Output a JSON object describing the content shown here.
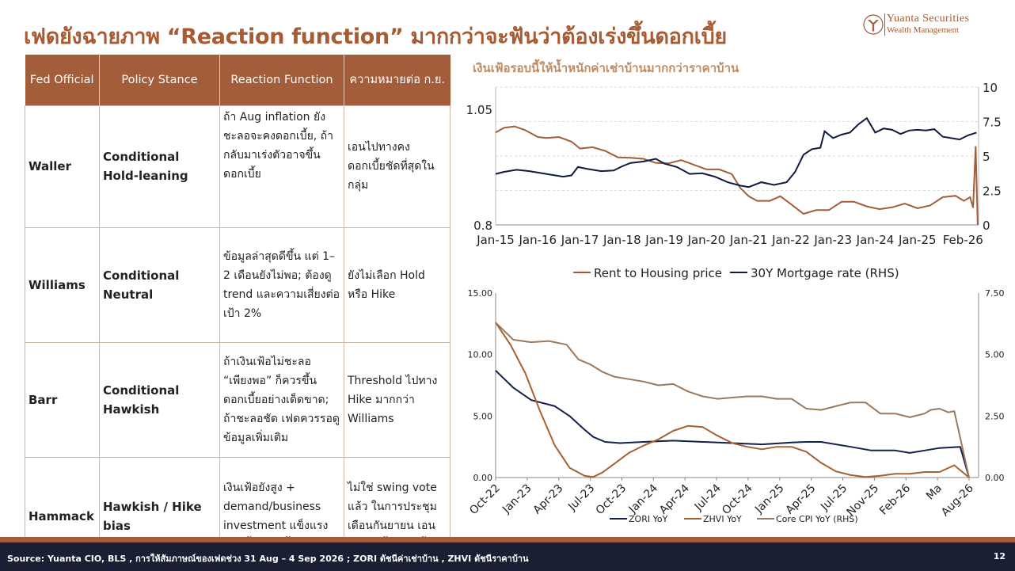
{
  "title": "เฟดยังฉายภาพ “Reaction function” มากกว่าจะฟันว่าต้องเร่งขึ้นดอกเบี้ย",
  "logo": {
    "brand": "Yuanta Securities",
    "sub": "Wealth Management"
  },
  "colors": {
    "accent": "#a35d3a",
    "navy": "#0f1b3d",
    "rent": "#a35d3a",
    "zori": "#13204a",
    "zhvi": "#a8602f",
    "core": "#9a7a5e",
    "footer": "#1b1f34"
  },
  "table": {
    "headers": [
      "Fed Official",
      "Policy Stance",
      "Reaction Function",
      "ความหมายต่อ ก.ย."
    ],
    "rows": [
      {
        "official": "Waller",
        "stance": "Conditional Hold-leaning",
        "reaction": "ถ้า Aug inflation ยังชะลอจะคงดอกเบี้ย, ถ้ากลับมาเร่งตัวอาจขึ้นดอกเบี้ย",
        "meaning": "เอนไปทางคงดอกเบี้ยชัดที่สุดในกลุ่ม"
      },
      {
        "official": "Williams",
        "stance": "Conditional Neutral",
        "reaction": "ข้อมูลล่าสุดดีขึ้น แต่ 1–2 เดือนยังไม่พอ; ต้องดู trend และความเสี่ยงต่อเป้า 2%",
        "meaning": "ยังไม่เลือก Hold หรือ Hike"
      },
      {
        "official": "Barr",
        "stance": "Conditional Hawkish",
        "reaction": "ถ้าเงินเฟ้อไม่ชะลอ “เพียงพอ” ก็ควรขึ้นดอกเบี้ยอย่างเด็ดขาด; ถ้าชะลอชัด เฟดควรรอดูข้อมูลเพิ่มเติม",
        "meaning": "Threshold ไปทาง Hike มากกว่า Williams"
      },
      {
        "official": "Hammack",
        "stance": "Hawkish / Hike bias",
        "reaction": "เงินเฟ้อยังสูง + demand/business investment แข็งแรง ควรขึ้นดอกเบี้ย",
        "meaning": "ไม่ใช่ swing vote แล้ว ในการประชุมเดือนกันยายน เอนไปทางขึ้นดอกเบี้ย"
      }
    ]
  },
  "chart1_title": "เงินเฟ้อรอบนี้ให้น้ำหนักค่าเช่าบ้านมากกว่าราคาบ้าน",
  "chart_data": [
    {
      "type": "line",
      "title": "เงินเฟ้อรอบนี้ให้น้ำหนักค่าเช่าบ้านมากกว่าราคาบ้าน",
      "x_ticks": [
        "Jan-15",
        "Jan-16",
        "Jan-17",
        "Jan-18",
        "Jan-19",
        "Jan-20",
        "Jan-21",
        "Jan-22",
        "Jan-23",
        "Jan-24",
        "Jan-25",
        "Feb-26"
      ],
      "y_left_ticks": [
        "0.8",
        "1.05"
      ],
      "y_left_lim": [
        0.8,
        1.05
      ],
      "y_right_ticks": [
        "0",
        "2.5",
        "5",
        "7.5",
        "10"
      ],
      "y_right_lim": [
        0,
        10
      ],
      "grid": true,
      "legend": "bottom",
      "series": [
        {
          "name": "Rent to Housing price",
          "axis": "left",
          "color": "#a35d3a",
          "x": [
            2015.0,
            2015.2,
            2015.45,
            2015.7,
            2016.0,
            2016.2,
            2016.5,
            2016.8,
            2017.0,
            2017.3,
            2017.6,
            2017.9,
            2018.2,
            2018.5,
            2018.8,
            2019.1,
            2019.4,
            2019.7,
            2020.0,
            2020.3,
            2020.6,
            2020.8,
            2021.0,
            2021.2,
            2021.5,
            2021.75,
            2022.0,
            2022.3,
            2022.6,
            2022.9,
            2023.2,
            2023.5,
            2023.8,
            2024.1,
            2024.4,
            2024.7,
            2025.0,
            2025.3,
            2025.6,
            2025.9,
            2026.1,
            2026.25,
            2026.32,
            2026.38,
            2026.43
          ],
          "y": [
            1.0,
            1.01,
            1.013,
            1.005,
            0.99,
            0.988,
            0.99,
            0.98,
            0.965,
            0.968,
            0.96,
            0.946,
            0.945,
            0.943,
            0.934,
            0.933,
            0.94,
            0.93,
            0.92,
            0.92,
            0.91,
            0.88,
            0.862,
            0.852,
            0.852,
            0.862,
            0.845,
            0.824,
            0.832,
            0.832,
            0.85,
            0.85,
            0.84,
            0.834,
            0.838,
            0.846,
            0.836,
            0.842,
            0.86,
            0.863,
            0.852,
            0.86,
            0.837,
            0.97,
            0.8
          ]
        },
        {
          "name": "30Y Mortgage rate (RHS)",
          "axis": "right",
          "color": "#0f1b3d",
          "x": [
            2015.0,
            2015.2,
            2015.5,
            2015.8,
            2016.0,
            2016.3,
            2016.6,
            2016.8,
            2016.95,
            2017.2,
            2017.5,
            2017.8,
            2018.0,
            2018.2,
            2018.5,
            2018.8,
            2019.0,
            2019.3,
            2019.6,
            2019.9,
            2020.2,
            2020.5,
            2020.8,
            2021.0,
            2021.3,
            2021.6,
            2021.9,
            2022.1,
            2022.3,
            2022.5,
            2022.7,
            2022.8,
            2023.0,
            2023.2,
            2023.4,
            2023.6,
            2023.8,
            2024.0,
            2024.2,
            2024.4,
            2024.6,
            2024.8,
            2025.0,
            2025.2,
            2025.4,
            2025.6,
            2025.8,
            2026.0,
            2026.2,
            2026.4
          ],
          "y": [
            3.7,
            3.85,
            4.0,
            3.9,
            3.8,
            3.65,
            3.5,
            3.6,
            4.2,
            4.05,
            3.9,
            3.95,
            4.25,
            4.5,
            4.6,
            4.8,
            4.45,
            4.2,
            3.7,
            3.75,
            3.5,
            3.1,
            2.85,
            2.75,
            3.1,
            2.9,
            3.1,
            3.85,
            5.1,
            5.5,
            5.6,
            6.8,
            6.3,
            6.55,
            6.7,
            7.3,
            7.75,
            6.7,
            7.0,
            6.9,
            6.6,
            6.85,
            6.9,
            6.85,
            6.95,
            6.4,
            6.3,
            6.2,
            6.5,
            6.7
          ]
        }
      ]
    },
    {
      "type": "line",
      "x_ticks": [
        "Oct-22",
        "Jan-23",
        "Apr-23",
        "Jul-23",
        "Oct-23",
        "Jan-24",
        "Apr-24",
        "Jul-24",
        "Oct-24",
        "Jan-25",
        "Apr-25",
        "Jul-25",
        "Nov-25",
        "Feb-26",
        "Ma",
        "Aug-26"
      ],
      "y_left_ticks": [
        "0.00",
        "5.00",
        "10.00",
        "15.00"
      ],
      "y_left_lim": [
        0,
        15
      ],
      "y_right_ticks": [
        "0.00",
        "2.50",
        "5.00",
        "7.50"
      ],
      "y_right_lim": [
        0,
        7.5
      ],
      "grid": false,
      "legend": "bottom",
      "series": [
        {
          "name": "ZORI YoY",
          "axis": "left",
          "color": "#13204a",
          "x": [
            0,
            0.6,
            1.2,
            2.0,
            2.5,
            3.0,
            3.3,
            3.7,
            4.2,
            5.0,
            6.0,
            7.0,
            8.0,
            9.0,
            10.0,
            10.5,
            11.0,
            12.0,
            12.7,
            13.5,
            14.0,
            14.5,
            15.0,
            15.7,
            16.0
          ],
          "y": [
            8.7,
            7.3,
            6.3,
            5.8,
            5.0,
            3.9,
            3.3,
            2.9,
            2.8,
            2.9,
            3.0,
            2.9,
            2.8,
            2.7,
            2.85,
            2.9,
            2.9,
            2.5,
            2.2,
            2.2,
            2.0,
            2.2,
            2.4,
            2.5,
            0.0
          ]
        },
        {
          "name": "ZHVI YoY",
          "axis": "left",
          "color": "#a8602f",
          "x": [
            0,
            0.5,
            1.0,
            1.5,
            2.0,
            2.5,
            3.0,
            3.3,
            3.6,
            4.0,
            4.5,
            5.0,
            5.5,
            6.0,
            6.5,
            7.0,
            7.5,
            8.0,
            8.5,
            9.0,
            9.5,
            10.0,
            10.5,
            11.0,
            11.5,
            12.0,
            12.5,
            13.0,
            13.5,
            14.0,
            14.5,
            15.0,
            15.5,
            16.0
          ],
          "y": [
            12.6,
            10.8,
            8.5,
            5.4,
            2.6,
            0.8,
            0.15,
            0.05,
            0.4,
            1.1,
            2.0,
            2.6,
            3.1,
            3.8,
            4.2,
            4.1,
            3.4,
            2.8,
            2.5,
            2.3,
            2.5,
            2.5,
            2.1,
            1.2,
            0.5,
            0.2,
            0.05,
            0.15,
            0.3,
            0.3,
            0.45,
            0.45,
            1.0,
            0.0
          ]
        },
        {
          "name": "Core CPI YoY (RHS)",
          "axis": "right",
          "color": "#9a7a5e",
          "x": [
            0,
            0.6,
            1.2,
            1.8,
            2.4,
            2.8,
            3.2,
            3.6,
            4.0,
            4.5,
            5.0,
            5.5,
            6.0,
            6.5,
            7.0,
            7.5,
            8.0,
            8.5,
            9.0,
            9.5,
            10.0,
            10.5,
            11.0,
            11.5,
            12.0,
            12.5,
            13.0,
            13.5,
            14.0,
            14.5,
            14.7,
            15.0,
            15.3,
            15.5,
            16.0
          ],
          "y": [
            6.3,
            5.6,
            5.5,
            5.55,
            5.4,
            4.8,
            4.6,
            4.3,
            4.1,
            4.0,
            3.9,
            3.75,
            3.8,
            3.5,
            3.3,
            3.2,
            3.25,
            3.3,
            3.3,
            3.2,
            3.2,
            2.8,
            2.75,
            2.9,
            3.05,
            3.05,
            2.6,
            2.6,
            2.45,
            2.6,
            2.75,
            2.8,
            2.65,
            2.7,
            0.0
          ]
        }
      ]
    }
  ],
  "footer": {
    "source": "Source: Yuanta CIO, BLS , การให้สัมภาษณ์ของเฟดช่วง 31 Aug – 4 Sep 2026 ; ZORI ดัชนีค่าเช่าบ้าน , ZHVI ดัชนีราคาบ้าน",
    "page": "12"
  }
}
